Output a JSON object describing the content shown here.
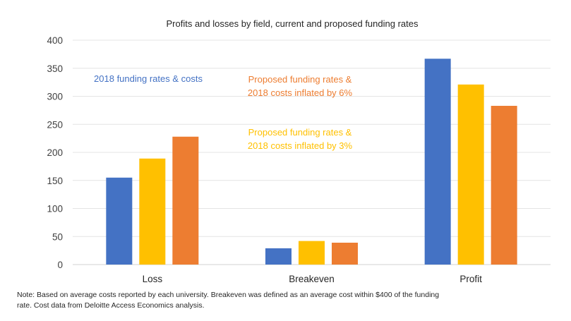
{
  "chart_data": {
    "type": "bar",
    "title": "Profits and losses by field, current and proposed funding rates",
    "xlabel": "",
    "ylabel": "",
    "ylim": [
      0,
      400
    ],
    "yticks": [
      0,
      50,
      100,
      150,
      200,
      250,
      300,
      350,
      400
    ],
    "grid": true,
    "categories": [
      "Loss",
      "Breakeven",
      "Profit"
    ],
    "series": [
      {
        "name": "2018 funding rates & costs",
        "color": "#4472C4",
        "values": [
          155,
          29,
          367
        ]
      },
      {
        "name": "Proposed funding rates & 2018 costs inflated by 3%",
        "color": "#FFC000",
        "values": [
          189,
          42,
          321
        ]
      },
      {
        "name": "Proposed funding rates & 2018 costs inflated by 6%",
        "color": "#ED7D31",
        "values": [
          228,
          39,
          283
        ]
      }
    ],
    "annotations": [
      {
        "lines": [
          "2018 funding rates & costs"
        ],
        "color": "#4472C4",
        "series": 0
      },
      {
        "lines": [
          "Proposed funding rates &",
          "2018 costs inflated by 6%"
        ],
        "color": "#ED7D31",
        "series": 2
      },
      {
        "lines": [
          "Proposed funding rates &",
          "2018 costs inflated by 3%"
        ],
        "color": "#FFC000",
        "series": 1
      }
    ]
  },
  "note": "Note: Based on average costs reported by each university. Breakeven was defined as an average cost within $400 of the funding rate. Cost data from Deloitte Access Economics analysis."
}
